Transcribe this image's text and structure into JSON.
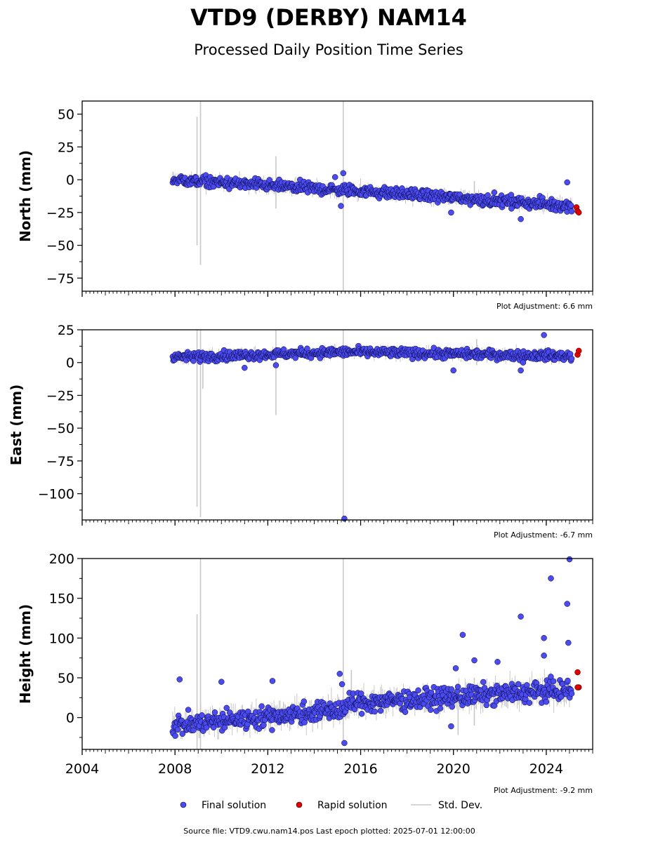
{
  "title": "VTD9 (DERBY) NAM14",
  "subtitle": "Processed Daily Position Time Series",
  "colors": {
    "final": "#4b4bf0",
    "final_edge": "#000033",
    "rapid": "#e00000",
    "stddev": "#c8c8c8"
  },
  "legend": {
    "final": "Final solution",
    "rapid": "Rapid solution",
    "stddev": "Std. Dev."
  },
  "source": "Source file: VTD9.cwu.nam14.pos  Last epoch plotted: 2025-07-01 12:00:00",
  "chart_data": [
    {
      "type": "scatter",
      "ylabel": "North (mm)",
      "adjustment": "Plot Adjustment: 6.6 mm",
      "xlim": [
        2004.0,
        2026.0
      ],
      "ylim": [
        -85,
        60
      ],
      "yticks": [
        50,
        25,
        0,
        -25,
        -50,
        -75
      ],
      "yticklabels": [
        "50",
        "25",
        "0",
        "−25",
        "−50",
        "−75"
      ],
      "final_trend": [
        [
          2007.9,
          0
        ],
        [
          2015.2,
          -8
        ],
        [
          2015.6,
          -8
        ],
        [
          2025.1,
          -20
        ]
      ],
      "final_noise": 3,
      "final_outliers": [
        [
          2014.9,
          2
        ],
        [
          2015.25,
          5
        ],
        [
          2015.15,
          -20
        ],
        [
          2019.9,
          -25
        ],
        [
          2022.9,
          -30
        ],
        [
          2024.9,
          -2
        ],
        [
          2022.5,
          -22
        ]
      ],
      "rapid": [
        [
          2025.3,
          -21
        ],
        [
          2025.35,
          -24
        ],
        [
          2025.4,
          -25
        ]
      ],
      "stddev_spikes": [
        [
          2008.95,
          48,
          -50
        ],
        [
          2009.1,
          60,
          -65
        ],
        [
          2012.35,
          18,
          -22
        ],
        [
          2015.25,
          60,
          -85
        ],
        [
          2020.9,
          -1,
          -15
        ]
      ]
    },
    {
      "type": "scatter",
      "ylabel": "East (mm)",
      "adjustment": "Plot Adjustment: -6.7 mm",
      "xlim": [
        2004.0,
        2026.0
      ],
      "ylim": [
        -120,
        25
      ],
      "yticks": [
        25,
        0,
        -25,
        -50,
        -75,
        -100
      ],
      "yticklabels": [
        "25",
        "0",
        "−25",
        "−50",
        "−75",
        "−100"
      ],
      "final_trend": [
        [
          2007.9,
          4
        ],
        [
          2015.2,
          8
        ],
        [
          2015.6,
          8
        ],
        [
          2025.1,
          5
        ]
      ],
      "final_noise": 2.5,
      "final_outliers": [
        [
          2011.0,
          -4
        ],
        [
          2012.35,
          -2
        ],
        [
          2015.3,
          -119
        ],
        [
          2020.0,
          -6
        ],
        [
          2022.9,
          -6
        ],
        [
          2023.9,
          21
        ],
        [
          2023.0,
          0
        ]
      ],
      "rapid": [
        [
          2025.35,
          6
        ],
        [
          2025.4,
          9
        ]
      ],
      "stddev_spikes": [
        [
          2008.95,
          25,
          -110
        ],
        [
          2009.1,
          25,
          -118
        ],
        [
          2009.2,
          10,
          -20
        ],
        [
          2012.35,
          25,
          -40
        ],
        [
          2015.25,
          25,
          -120
        ],
        [
          2021.0,
          18,
          -2
        ]
      ]
    },
    {
      "type": "scatter",
      "ylabel": "Height (mm)",
      "adjustment": "Plot Adjustment: -9.2 mm",
      "xlim": [
        2004.0,
        2026.0
      ],
      "ylim": [
        -40,
        200
      ],
      "yticks": [
        200,
        150,
        100,
        50,
        0
      ],
      "yticklabels": [
        "200",
        "150",
        "100",
        "50",
        "0"
      ],
      "xticks": [
        2004,
        2008,
        2012,
        2016,
        2020,
        2024
      ],
      "xticklabels": [
        "2004",
        "2008",
        "2012",
        "2016",
        "2020",
        "2024"
      ],
      "final_trend": [
        [
          2007.9,
          -10
        ],
        [
          2015.2,
          10
        ],
        [
          2015.6,
          18
        ],
        [
          2025.1,
          35
        ]
      ],
      "final_noise": 9,
      "final_outliers": [
        [
          2008.2,
          48
        ],
        [
          2010.0,
          45
        ],
        [
          2012.2,
          46
        ],
        [
          2015.1,
          55
        ],
        [
          2015.2,
          42
        ],
        [
          2015.3,
          -32
        ],
        [
          2020.4,
          104
        ],
        [
          2020.1,
          62
        ],
        [
          2020.9,
          72
        ],
        [
          2021.9,
          70
        ],
        [
          2022.9,
          127
        ],
        [
          2023.9,
          100
        ],
        [
          2023.9,
          78
        ],
        [
          2024.2,
          175
        ],
        [
          2024.9,
          143
        ],
        [
          2024.95,
          94
        ],
        [
          2025.0,
          199
        ],
        [
          2019.9,
          -11
        ]
      ],
      "rapid": [
        [
          2025.35,
          57
        ],
        [
          2025.4,
          38
        ],
        [
          2025.35,
          38
        ]
      ],
      "stddev_spikes": [
        [
          2008.95,
          130,
          -40
        ],
        [
          2009.1,
          200,
          -40
        ],
        [
          2015.25,
          200,
          -35
        ],
        [
          2015.6,
          60,
          5
        ],
        [
          2020.2,
          40,
          -22
        ],
        [
          2020.9,
          50,
          -10
        ]
      ]
    }
  ]
}
